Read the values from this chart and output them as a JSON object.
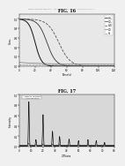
{
  "header_text": "Patent Application Publication    Apr. 10, 2008 Sheet 11 of 13    US 2008/0085225 A1",
  "fig16_title": "FIG. 16",
  "fig17_title": "FIG. 17",
  "background_color": "#f0f0f0",
  "fig16": {
    "xlabel": "Time(s)",
    "ylabel": "Conc.",
    "bg_color": "#e8e8e8"
  },
  "fig17": {
    "xlabel": "2-Theta",
    "ylabel": "Intensity",
    "bg_color": "#d8d8d8"
  }
}
